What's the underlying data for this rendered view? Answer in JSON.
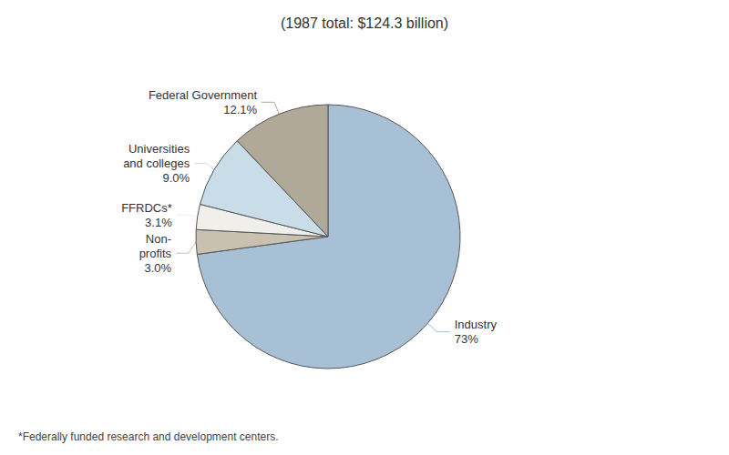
{
  "chart_data": {
    "type": "pie",
    "title": "(1987 total: $124.3 billion)",
    "footnote": "*Federally funded research and development centers.",
    "categories": [
      "Industry",
      "Non-\nprofits",
      "FFRDCs*",
      "Universities\nand colleges",
      "Federal Government"
    ],
    "values": [
      73.0,
      3.0,
      3.1,
      9.0,
      12.1
    ],
    "value_labels": [
      "73%",
      "3.0%",
      "3.1%",
      "9.0%",
      "12.1%"
    ],
    "colors": [
      "#a8c0d5",
      "#c8c0b0",
      "#f0efec",
      "#c8dde8",
      "#b0a898"
    ],
    "data_labels": true,
    "legend": false
  }
}
